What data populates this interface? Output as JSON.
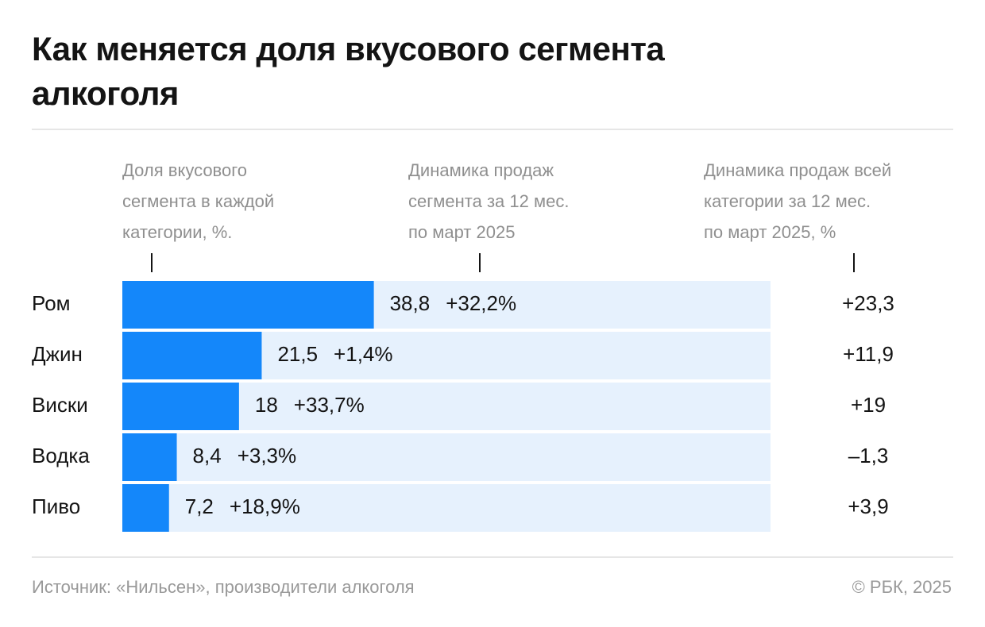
{
  "chart_data": {
    "type": "bar",
    "title": "Как меняется доля вкусового сегмента алкоголя",
    "column_headers": [
      [
        "Доля вкусового",
        "сегмента в каждой",
        "категории, %."
      ],
      [
        "Динамика продаж",
        "сегмента за 12 мес.",
        "по март 2025"
      ],
      [
        "Динамика продаж всей",
        "категории за 12 мес.",
        "по март 2025, %"
      ]
    ],
    "categories": [
      "Ром",
      "Джин",
      "Виски",
      "Водка",
      "Пиво"
    ],
    "values": [
      38.8,
      21.5,
      18,
      8.4,
      7.2
    ],
    "value_labels": [
      "38,8",
      "21,5",
      "18",
      "8,4",
      "7,2"
    ],
    "color": "#1487fa",
    "track_color": "#e6f1fd",
    "xlim": [
      0,
      100
    ],
    "segment_growth": {
      "values": [
        32.2,
        1.4,
        33.7,
        3.3,
        18.9
      ],
      "value_labels": [
        "+32,2%",
        "+1,4%",
        "+33,7%",
        "+3,3%",
        "+18,9%"
      ],
      "positive_color": "#1cba78",
      "negative_color": "#e8373a"
    },
    "category_growth": {
      "values": [
        23.3,
        11.9,
        19,
        -1.3,
        3.9
      ],
      "value_labels": [
        "+23,3",
        "+11,9",
        "+19",
        "–1,3",
        "+3,9"
      ],
      "positive_color": "#139c5e",
      "negative_color": "#e8373a"
    },
    "source": "Источник: «Нильсен», производители алкоголя",
    "credit": "© РБК, 2025"
  }
}
